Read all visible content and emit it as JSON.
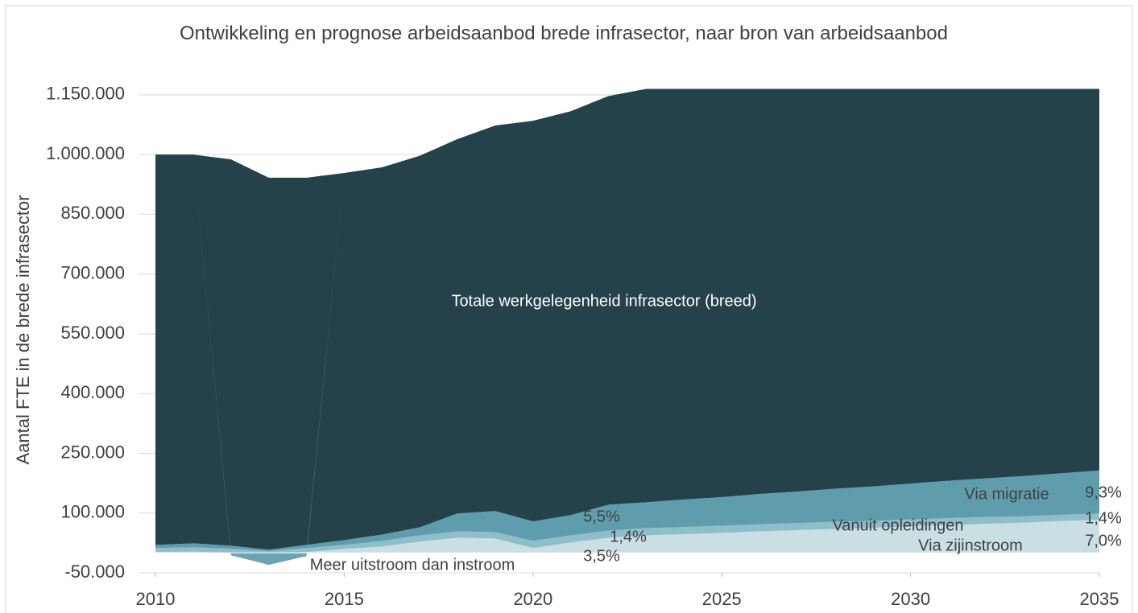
{
  "chart_data": {
    "type": "stacked_area",
    "title": "Ontwikkeling en prognose arbeidsaanbod brede infrasector, naar bron van arbeidsaanbod",
    "ylabel": "Aantal FTE in de brede infrasector",
    "x": [
      2010,
      2011,
      2012,
      2013,
      2014,
      2015,
      2016,
      2017,
      2018,
      2019,
      2020,
      2021,
      2022,
      2023,
      2024,
      2025,
      2026,
      2027,
      2028,
      2029,
      2030,
      2031,
      2032,
      2033,
      2034,
      2035
    ],
    "xlim": [
      2010,
      2035
    ],
    "xticks": [
      2010,
      2015,
      2020,
      2025,
      2030,
      2035
    ],
    "ylim": [
      -50000,
      1170000
    ],
    "yticks": [
      {
        "value": -50000,
        "label": "-50.000"
      },
      {
        "value": 100000,
        "label": "100.000"
      },
      {
        "value": 250000,
        "label": "250.000"
      },
      {
        "value": 400000,
        "label": "400.000"
      },
      {
        "value": 550000,
        "label": "550.000"
      },
      {
        "value": 700000,
        "label": "700.000"
      },
      {
        "value": 850000,
        "label": "850.000"
      },
      {
        "value": 1000000,
        "label": "1.000.000"
      },
      {
        "value": 1150000,
        "label": "1.150.000"
      }
    ],
    "grid": true,
    "series": [
      {
        "name": "Via zijinstroom",
        "color": "#c9dfe4",
        "values": [
          2000,
          3000,
          0,
          0,
          2000,
          10000,
          16000,
          28000,
          38000,
          36000,
          12000,
          26000,
          38000,
          44000,
          47000,
          50000,
          54000,
          57000,
          60000,
          63000,
          67000,
          70000,
          73000,
          76000,
          80000,
          83000
        ]
      },
      {
        "name": "Vanuit opleidingen",
        "color": "#8fbecb",
        "values": [
          10000,
          11000,
          10000,
          4000,
          10000,
          10000,
          14000,
          16000,
          16000,
          16000,
          18000,
          18000,
          18000,
          18000,
          18000,
          18000,
          18000,
          18000,
          18000,
          17000,
          17000,
          17000,
          17000,
          16000,
          16000,
          16000
        ]
      },
      {
        "name": "Via migratie",
        "color": "#5f9dad",
        "values": [
          8000,
          10000,
          8000,
          4000,
          8000,
          12000,
          16000,
          20000,
          45000,
          53000,
          49000,
          51000,
          65000,
          65000,
          69000,
          72000,
          76000,
          79000,
          83000,
          87000,
          90000,
          94000,
          97000,
          101000,
          104000,
          108000
        ]
      },
      {
        "name": "Totale werkgelegenheid infrasector (breed)",
        "color": "#25414a",
        "values": [
          980000,
          976000,
          970000,
          934000,
          922000,
          922000,
          922000,
          933000,
          940000,
          968000,
          1006000,
          1014000,
          1026000,
          1038000,
          1031000,
          1025000,
          1017000,
          1011000,
          1004000,
          998000,
          991000,
          984000,
          978000,
          972000,
          965000,
          958000
        ]
      },
      {
        "name": "Meer uitstroom dan instroom",
        "color": "#6aa3b1",
        "values": [
          0,
          0,
          -6000,
          -30000,
          -8000,
          0,
          0,
          0,
          0,
          0,
          0,
          0,
          0,
          0,
          0,
          0,
          0,
          0,
          0,
          0,
          0,
          0,
          0,
          0,
          0,
          0
        ]
      }
    ],
    "annotations": [
      "9,3%",
      "1,4%",
      "7,0%",
      "5,5%",
      "1,4%",
      "3,5%"
    ]
  }
}
